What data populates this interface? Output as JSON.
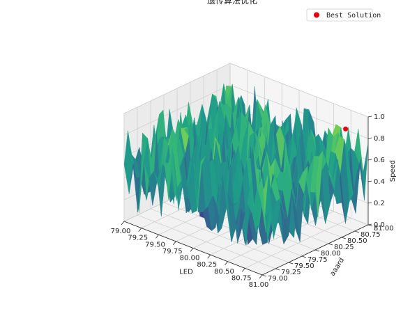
{
  "chart_data": {
    "type": "surface",
    "title": "遗传算法优化",
    "xlabel": "LED",
    "ylabel": "aaard",
    "zlabel": "Speed",
    "xlim": [
      79.0,
      81.0
    ],
    "ylim": [
      79.0,
      81.0
    ],
    "zlim": [
      0.0,
      1.0
    ],
    "xticks": [
      "79.00",
      "79.25",
      "79.50",
      "79.75",
      "80.00",
      "80.25",
      "80.50",
      "80.75",
      "81.00"
    ],
    "yticks": [
      "79.00",
      "79.25",
      "79.50",
      "79.75",
      "80.00",
      "80.25",
      "80.50",
      "80.75",
      "81.00"
    ],
    "zticks": [
      "0.0",
      "0.2",
      "0.4",
      "0.6",
      "0.8",
      "1.0"
    ],
    "colormap": "viridis",
    "grid": true,
    "surface_pattern": "noisy, values spread approximately uniformly between 0.0 and 1.0 across the grid",
    "best_point": {
      "x": 80.75,
      "y": 80.9,
      "z": 0.85
    },
    "best_color": "#e8000b",
    "legend": {
      "position": "top-right",
      "entries": [
        {
          "label": "Best Solution",
          "color": "#e8000b",
          "marker": "circle"
        }
      ]
    }
  }
}
